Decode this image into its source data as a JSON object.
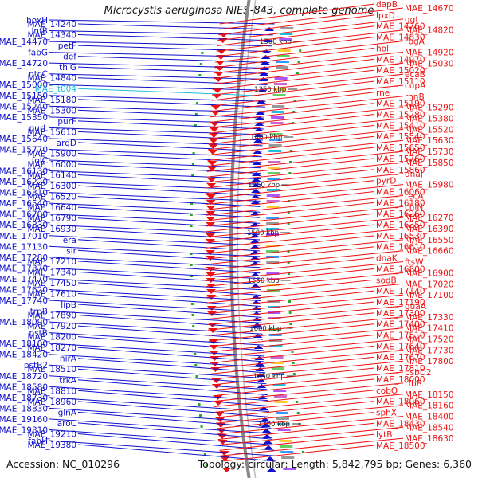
{
  "title": "Microcystis aeruginosa NIES-843, complete genome",
  "footer": {
    "accession": "Accession: NC_010296",
    "summary": "Topology: circular; Length: 5,842,795 bp; Genes: 6,360"
  },
  "colors": {
    "reverse_strand": "#1010cc",
    "forward_strand": "#ee1111",
    "trna": "#22bbdd",
    "backbone": "#888888"
  },
  "scale_ticks": [
    "1300 kbp",
    "1350 kbp",
    "1400 kbp",
    "1450 kbp",
    "1500 kbp",
    "1550 kbp",
    "1600 kbp",
    "1650 kbp",
    "1700 kbp"
  ],
  "left_labels": [
    [
      "hoxH",
      "MAE_14240",
      "infB",
      "MAE_14340",
      "MAE_14470",
      "petF",
      "fabG",
      "def",
      "MAE_14720",
      "thiG",
      "ntcC",
      "MAE_14840",
      "MAE_15000"
    ],
    [
      "MAE_t004",
      "MAE_15150",
      "MAE_15180",
      "MAE_15240",
      "MAE_15300",
      "MAE_15350",
      "purF",
      "purL",
      "MAE_15610",
      "MAE_15640",
      "argD",
      "MAE_15770",
      "MAE_15900"
    ],
    [
      "folC",
      "MAE_16000",
      "MAE_16130",
      "MAE_16140",
      "MAE_16220",
      "MAE_16300",
      "MAE_16310",
      "MAE_16520",
      "MAE_16540",
      "MAE_16640",
      "MAE_16700",
      "MAE_16790",
      "MAE_16830"
    ],
    [
      "MAE_16930",
      "MAE_17010",
      "era",
      "MAE_17130",
      "sir",
      "MAE_17280",
      "MAE_17210",
      "MAE_17370",
      "MAE_17340",
      "MAE_17470",
      "MAE_17450",
      "MAE_17620",
      "MAE_17610"
    ],
    [
      "MAE_17740",
      "lipB",
      "trpB",
      "MAE_17890",
      "MAE_18090",
      "MAE_17920",
      "pstB",
      "MAE_18200",
      "MAE_18100",
      "MAE_18270",
      "MAE_18420",
      "nirA",
      "pstB2"
    ],
    [
      "MAE_18510",
      "MAE_18720",
      "trkA",
      "MAE_18580",
      "MAE_18810",
      "MAE_18730",
      "MAE_18960",
      "MAE_18830",
      "glnA",
      "MAE_19160",
      "aroC",
      "MAE_19310",
      "MAE_19210"
    ],
    [
      "fabH",
      "MAE_19380"
    ]
  ],
  "right_labels": [
    [
      "dapB",
      "MAE_14670",
      "lpxD",
      "ggt",
      "MAE_14760",
      "MAE_14820",
      "MAE_14830",
      "rbgA",
      "hol",
      "MAE_14920",
      "MAE_14970",
      "MAE_15030",
      "MAE_15020"
    ],
    [
      "ecaB",
      "MAE_15110",
      "cupA",
      "rne",
      "rhnB",
      "MAE_15190",
      "MAE_15290",
      "MAE_15280",
      "MAE_15380",
      "MAE_15410",
      "MAE_15520",
      "MAE_15540",
      "MAE_15630"
    ],
    [
      "MAE_15650",
      "MAE_15730",
      "MAE_15760",
      "MAE_15850",
      "MAE_15860",
      "dnaJ",
      "pyrD",
      "MAE_15980",
      "MAE_16060",
      "recA",
      "MAE_16180",
      "chlN",
      "MAE_16260"
    ],
    [
      "MAE_16270",
      "MAE_16350",
      "MAE_16390",
      "MAE_16530",
      "MAE_16550",
      "MAE_16610",
      "MAE_16660",
      "dnaK",
      "ftsW",
      "MAE_16800",
      "MAE_16900",
      "sodB",
      "MAE_17020"
    ],
    [
      "MAE_17140",
      "MAE_17100",
      "MAE_17190",
      "guaA",
      "MAE_17300",
      "MAE_17330",
      "MAE_17400",
      "MAE_17410",
      "MAE_17510",
      "MAE_17520",
      "MAE_17640",
      "MAE_17730",
      "MAE_17670"
    ],
    [
      "MAE_17800",
      "MAE_17810",
      "psbD2",
      "MAE_18000",
      "rfbB",
      "cobO",
      "MAE_18150",
      "MAE_18060",
      "MAE_18160",
      "sphX",
      "MAE_18400",
      "MAE_18430",
      "MAE_18540"
    ],
    [
      "lytB",
      "MAE_18630",
      "MAE_18500"
    ]
  ]
}
